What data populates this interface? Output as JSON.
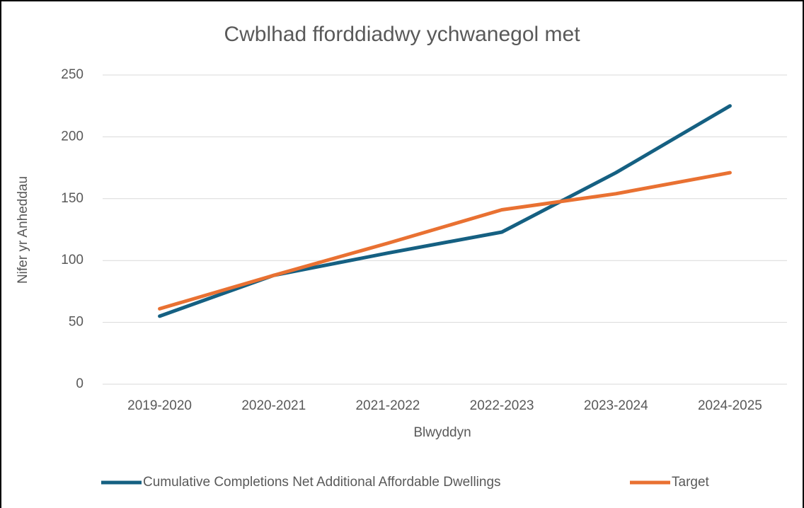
{
  "chart_data": {
    "type": "line",
    "title": "Cwblhad fforddiadwy ychwanegol met",
    "x_label": "Blwyddyn",
    "y_label": "Nifer yr Anheddau",
    "categories": [
      "2019-2020",
      "2020-2021",
      "2021-2022",
      "2022-2023",
      "2023-2024",
      "2024-2025"
    ],
    "series": [
      {
        "name": "Cumulative Completions Net Additional Affordable Dwellings",
        "color": "#156082",
        "values": [
          55,
          88,
          106,
          123,
          171,
          225
        ]
      },
      {
        "name": "Target",
        "color": "#e97132",
        "values": [
          61,
          88,
          114,
          141,
          154,
          171
        ]
      }
    ],
    "ylim": [
      0,
      250
    ],
    "yticks": [
      0,
      50,
      100,
      150,
      200,
      250
    ],
    "grid": true,
    "legend": "bottom"
  }
}
